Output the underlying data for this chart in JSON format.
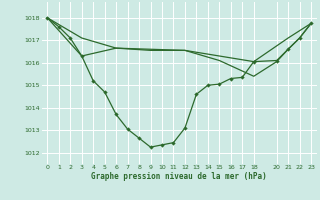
{
  "background_color": "#ceeae4",
  "grid_color": "#ffffff",
  "line_color": "#2d6a2d",
  "title": "Graphe pression niveau de la mer (hPa)",
  "xlim": [
    -0.5,
    23.5
  ],
  "ylim": [
    1011.5,
    1018.7
  ],
  "yticks": [
    1012,
    1013,
    1014,
    1015,
    1016,
    1017,
    1018
  ],
  "xticks": [
    0,
    1,
    2,
    3,
    4,
    5,
    6,
    7,
    8,
    9,
    10,
    11,
    12,
    13,
    14,
    15,
    16,
    17,
    18,
    20,
    21,
    22,
    23
  ],
  "series1_x": [
    0,
    1,
    2,
    3,
    4,
    5,
    6,
    7,
    8,
    9,
    10,
    11,
    12,
    13,
    14,
    15,
    16,
    17,
    18,
    20,
    21,
    22,
    23
  ],
  "series1_y": [
    1018.0,
    1017.6,
    1017.1,
    1016.3,
    1015.2,
    1014.7,
    1013.7,
    1013.05,
    1012.65,
    1012.25,
    1012.35,
    1012.45,
    1013.1,
    1014.6,
    1015.0,
    1015.05,
    1015.3,
    1015.35,
    1016.05,
    1016.1,
    1016.6,
    1017.1,
    1017.75
  ],
  "series2_x": [
    0,
    3,
    6,
    9,
    12,
    15,
    18,
    21,
    23
  ],
  "series2_y": [
    1018.0,
    1017.1,
    1016.65,
    1016.55,
    1016.55,
    1016.3,
    1016.05,
    1017.1,
    1017.75
  ],
  "series3_x": [
    0,
    3,
    6,
    9,
    12,
    15,
    18,
    20,
    21,
    22,
    23
  ],
  "series3_y": [
    1018.0,
    1016.3,
    1016.65,
    1016.6,
    1016.55,
    1016.1,
    1015.4,
    1016.05,
    1016.6,
    1017.1,
    1017.75
  ]
}
